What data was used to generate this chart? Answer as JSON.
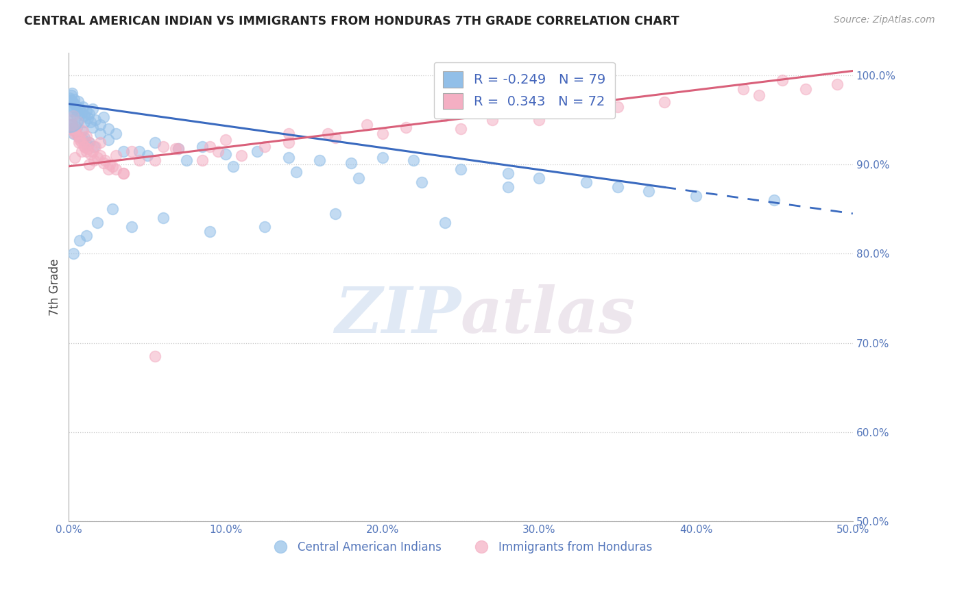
{
  "title": "CENTRAL AMERICAN INDIAN VS IMMIGRANTS FROM HONDURAS 7TH GRADE CORRELATION CHART",
  "source": "Source: ZipAtlas.com",
  "ylabel": "7th Grade",
  "blue_R": -0.249,
  "blue_N": 79,
  "pink_R": 0.343,
  "pink_N": 72,
  "blue_color": "#92bfe8",
  "pink_color": "#f4afc3",
  "blue_line_color": "#3a6abf",
  "pink_line_color": "#d9607a",
  "legend_blue_label": "Central American Indians",
  "legend_pink_label": "Immigrants from Honduras",
  "watermark_zip": "ZIP",
  "watermark_atlas": "atlas",
  "xlim": [
    0.0,
    50.0
  ],
  "ylim": [
    50.0,
    102.5
  ],
  "blue_trend_x0": 0.0,
  "blue_trend_y0": 96.8,
  "blue_trend_x1": 50.0,
  "blue_trend_y1": 84.5,
  "blue_solid_end": 38.0,
  "pink_trend_x0": 0.0,
  "pink_trend_y0": 89.8,
  "pink_trend_x1": 50.0,
  "pink_trend_y1": 100.5,
  "blue_scatter_x": [
    0.05,
    0.1,
    0.15,
    0.2,
    0.25,
    0.3,
    0.35,
    0.4,
    0.5,
    0.6,
    0.7,
    0.8,
    0.9,
    1.0,
    1.1,
    1.2,
    1.3,
    1.4,
    1.5,
    1.7,
    2.0,
    2.2,
    2.5,
    0.3,
    0.5,
    0.8,
    1.0,
    1.3,
    1.6,
    0.2,
    0.4,
    0.6,
    0.9,
    1.2,
    3.0,
    4.5,
    5.5,
    7.0,
    8.5,
    10.0,
    12.0,
    14.0,
    16.0,
    18.0,
    20.0,
    22.0,
    25.0,
    28.0,
    30.0,
    33.0,
    35.0,
    37.0,
    40.0,
    0.2,
    0.5,
    1.0,
    1.5,
    2.0,
    2.5,
    3.5,
    5.0,
    7.5,
    10.5,
    14.5,
    18.5,
    22.5,
    28.0,
    0.3,
    0.7,
    1.1,
    1.8,
    2.8,
    4.0,
    6.0,
    9.0,
    12.5,
    17.0,
    24.0,
    45.0
  ],
  "blue_scatter_y": [
    97.5,
    97.2,
    97.8,
    98.0,
    97.0,
    96.5,
    97.3,
    96.8,
    96.0,
    97.1,
    96.3,
    95.8,
    96.5,
    95.5,
    96.0,
    95.2,
    95.7,
    94.8,
    96.2,
    95.0,
    94.5,
    95.3,
    94.0,
    93.5,
    94.2,
    93.8,
    93.0,
    92.5,
    92.0,
    94.5,
    93.8,
    93.2,
    92.8,
    92.2,
    93.5,
    91.5,
    92.5,
    91.8,
    92.0,
    91.2,
    91.5,
    90.8,
    90.5,
    90.2,
    90.8,
    90.5,
    89.5,
    89.0,
    88.5,
    88.0,
    87.5,
    87.0,
    86.5,
    96.0,
    95.5,
    94.8,
    94.2,
    93.5,
    92.8,
    91.5,
    91.0,
    90.5,
    89.8,
    89.2,
    88.5,
    88.0,
    87.5,
    80.0,
    81.5,
    82.0,
    83.5,
    85.0,
    83.0,
    84.0,
    82.5,
    83.0,
    84.5,
    83.5,
    86.0
  ],
  "pink_scatter_x": [
    0.1,
    0.2,
    0.3,
    0.4,
    0.5,
    0.6,
    0.7,
    0.8,
    0.9,
    1.0,
    1.1,
    1.2,
    1.3,
    1.5,
    1.7,
    2.0,
    2.3,
    2.6,
    3.0,
    3.5,
    0.2,
    0.4,
    0.7,
    1.0,
    1.4,
    1.8,
    2.2,
    2.8,
    0.15,
    0.35,
    0.65,
    1.1,
    1.6,
    2.5,
    4.0,
    5.5,
    7.0,
    9.0,
    11.0,
    14.0,
    17.0,
    20.0,
    25.0,
    30.0,
    9.5,
    12.5,
    16.5,
    21.5,
    27.0,
    35.0,
    43.0,
    45.5,
    3.5,
    6.0,
    8.5,
    0.4,
    0.8,
    1.3,
    2.0,
    3.0,
    4.5,
    6.8,
    10.0,
    14.0,
    19.0,
    24.0,
    31.0,
    38.0,
    44.0,
    47.0,
    49.0,
    5.5
  ],
  "pink_scatter_y": [
    95.0,
    94.5,
    95.5,
    94.0,
    93.5,
    94.8,
    93.0,
    92.5,
    93.8,
    92.0,
    93.2,
    91.8,
    92.5,
    91.5,
    92.0,
    91.0,
    90.5,
    90.0,
    89.5,
    89.0,
    94.0,
    93.5,
    92.8,
    92.0,
    91.2,
    90.8,
    90.2,
    89.8,
    94.5,
    93.8,
    92.5,
    91.5,
    90.5,
    89.5,
    91.5,
    90.5,
    91.8,
    92.0,
    91.0,
    92.5,
    93.0,
    93.5,
    94.0,
    95.0,
    91.5,
    92.0,
    93.5,
    94.2,
    95.0,
    96.5,
    98.5,
    99.5,
    89.0,
    92.0,
    90.5,
    90.8,
    91.5,
    90.0,
    92.5,
    91.0,
    90.5,
    91.8,
    92.8,
    93.5,
    94.5,
    95.5,
    96.0,
    97.0,
    97.8,
    98.5,
    99.0,
    68.5
  ],
  "big_blue_x": 0.02,
  "big_blue_y": 95.2,
  "big_blue_size": 900
}
